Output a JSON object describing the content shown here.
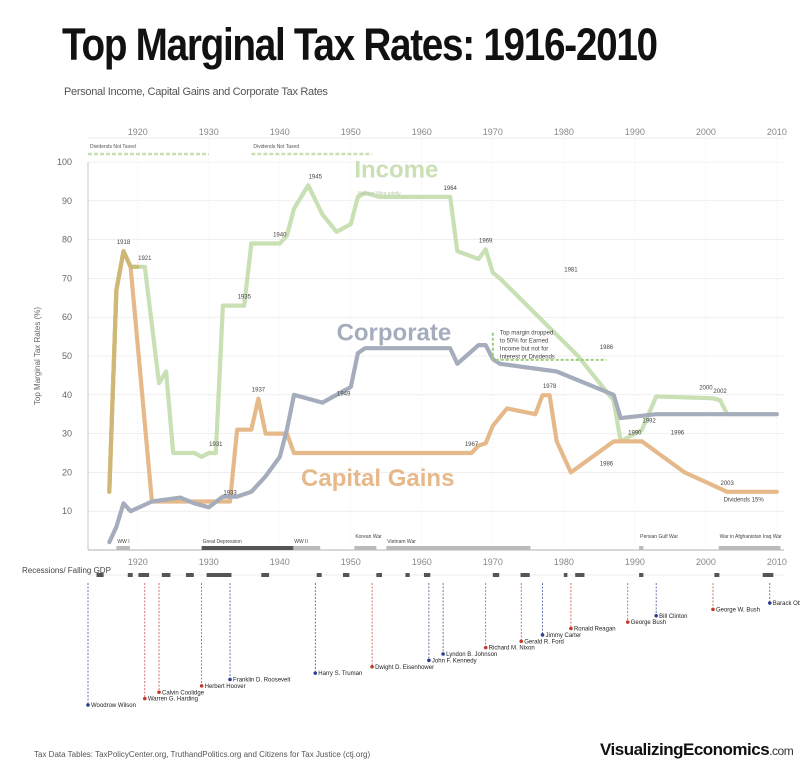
{
  "title": "Top Marginal Tax Rates: 1916-2010",
  "subtitle": "Personal Income, Capital Gains and Corporate Tax Rates",
  "footer": {
    "source": "Tax Data Tables: TaxPolicyCenter.org, TruthandPolitics.org and Citizens for Tax Justice (ctj.org)",
    "brand": "VisualizingEconomics",
    "brand_suffix": ".com"
  },
  "colors": {
    "income": "#c9dfb4",
    "corporate": "#a5adbd",
    "capital_gains": "#e6b98a",
    "republican": "#c0392b",
    "democrat": "#2e3d8f"
  },
  "chart_data": {
    "type": "line",
    "title": "Top Marginal Tax Rates: 1916-2010",
    "ylabel": "Top Marginal Tax Rates (%)",
    "xlabel": "",
    "xlim": [
      1913,
      2011
    ],
    "ylim": [
      0,
      100
    ],
    "x_ticks_top": [
      1920,
      1930,
      1940,
      1950,
      1960,
      1970,
      1980,
      1990,
      2000,
      2010
    ],
    "x_ticks_bottom": [
      1920,
      1930,
      1940,
      1950,
      1960,
      1970,
      1980,
      1990,
      2000,
      2010
    ],
    "y_ticks": [
      10,
      20,
      30,
      40,
      50,
      60,
      70,
      80,
      90,
      100
    ],
    "series": [
      {
        "name": "Income",
        "label": "Income",
        "sublabel": "Married filing jointly",
        "x": [
          1916,
          1917,
          1918,
          1919,
          1920,
          1921,
          1922,
          1923,
          1924,
          1925,
          1928,
          1929,
          1930,
          1931,
          1932,
          1934,
          1935,
          1936,
          1940,
          1941,
          1942,
          1944,
          1946,
          1948,
          1950,
          1951,
          1952,
          1954,
          1964,
          1965,
          1968,
          1969,
          1970,
          1971,
          1982,
          1987,
          1988,
          1991,
          1993,
          2001,
          2002,
          2003,
          2010
        ],
        "values": [
          15,
          67,
          77,
          73,
          73,
          73,
          58,
          43,
          46,
          25,
          25,
          24,
          25,
          25,
          63,
          63,
          63,
          79,
          79,
          81,
          88,
          94,
          86.5,
          82,
          84,
          91,
          92,
          91,
          91,
          77,
          75,
          77.5,
          71.5,
          70,
          50,
          38.5,
          28,
          31,
          39.6,
          39.1,
          38.6,
          35,
          35
        ],
        "annotations": [
          {
            "x": 1918,
            "y": 77,
            "text": "1918"
          },
          {
            "x": 1921,
            "y": 73,
            "text": "1921"
          },
          {
            "x": 1931,
            "y": 25,
            "text": "1931"
          },
          {
            "x": 1935,
            "y": 63,
            "text": "1935"
          },
          {
            "x": 1940,
            "y": 79,
            "text": "1940"
          },
          {
            "x": 1945,
            "y": 94,
            "text": "1945"
          },
          {
            "x": 1964,
            "y": 91,
            "text": "1964"
          },
          {
            "x": 1969,
            "y": 77.5,
            "text": "1969"
          },
          {
            "x": 1981,
            "y": 70,
            "text": "1981"
          },
          {
            "x": 1986,
            "y": 50,
            "text": "1986"
          },
          {
            "x": 1992,
            "y": 31,
            "text": "1992"
          },
          {
            "x": 2000,
            "y": 39.6,
            "text": "2000"
          },
          {
            "x": 2002,
            "y": 38.6,
            "text": "2002"
          }
        ]
      },
      {
        "name": "Corporate",
        "label": "Corporate",
        "x": [
          1916,
          1917,
          1918,
          1919,
          1922,
          1926,
          1928,
          1930,
          1932,
          1934,
          1936,
          1938,
          1940,
          1941,
          1942,
          1946,
          1950,
          1951,
          1952,
          1964,
          1965,
          1968,
          1969,
          1970,
          1971,
          1979,
          1987,
          1988,
          1993,
          2010
        ],
        "values": [
          2,
          6,
          12,
          10,
          12.5,
          13.5,
          12,
          11,
          13.75,
          13.75,
          15,
          19,
          24,
          31,
          40,
          38,
          42,
          50.75,
          52,
          52,
          48,
          52.8,
          52.8,
          49.2,
          48,
          46,
          40,
          34,
          35,
          35
        ],
        "annotations": [
          {
            "x": 1949,
            "y": 38,
            "text": "1949"
          }
        ]
      },
      {
        "name": "Capital Gains",
        "label": "Capital Gains",
        "x": [
          1916,
          1917,
          1918,
          1919,
          1922,
          1933,
          1934,
          1936,
          1937,
          1938,
          1941,
          1942,
          1967,
          1968,
          1969,
          1970,
          1972,
          1976,
          1977,
          1978,
          1979,
          1981,
          1987,
          1991,
          1997,
          2003,
          2010
        ],
        "values": [
          15,
          67,
          77,
          73,
          12.5,
          12.5,
          31,
          31,
          39,
          30,
          30,
          25,
          25,
          26.9,
          27.5,
          32,
          36.5,
          35,
          39.9,
          39.9,
          28,
          20,
          28,
          28,
          20,
          15,
          15
        ],
        "annotations": [
          {
            "x": 1933,
            "y": 12.5,
            "text": "1933"
          },
          {
            "x": 1937,
            "y": 39,
            "text": "1937"
          },
          {
            "x": 1967,
            "y": 25,
            "text": "1967"
          },
          {
            "x": 1978,
            "y": 39.9,
            "text": "1978"
          },
          {
            "x": 1986,
            "y": 20,
            "text": "1986"
          },
          {
            "x": 1990,
            "y": 28,
            "text": "1990"
          },
          {
            "x": 1996,
            "y": 28,
            "text": "1996"
          },
          {
            "x": 2003,
            "y": 15,
            "text": "2003"
          }
        ]
      }
    ],
    "notes": [
      {
        "x1": 1913,
        "x2": 1930,
        "text": "Dividends Not Taxed"
      },
      {
        "x1": 1936,
        "x2": 1953,
        "text": "Dividends Not Taxed"
      }
    ],
    "callout": {
      "x": 2003,
      "text": "Dividends 15%",
      "note_lines": [
        "Top margin dropped",
        "to 50% for Earned",
        "Income but not for",
        "Interest or Dividends"
      ]
    },
    "wars": [
      {
        "label": "WW I",
        "x1": 1917,
        "x2": 1918.9
      },
      {
        "label": "Great Depression",
        "x1": 1929,
        "x2": 1942
      },
      {
        "label": "WW II",
        "x1": 1941.9,
        "x2": 1945.7
      },
      {
        "label": "Korean War",
        "x1": 1950.5,
        "x2": 1953.6
      },
      {
        "label": "Vietnam War",
        "x1": 1955,
        "x2": 1975.3
      },
      {
        "label": "Persian Gulf War",
        "x1": 1990.6,
        "x2": 1991.2
      },
      {
        "label": "War in Afghanistan Iraq War",
        "x1": 2001.8,
        "x2": 2010.5
      }
    ],
    "recessions_label": "Recessions/ Falling GDP",
    "recessions": [
      [
        1914.2,
        1915.2
      ],
      [
        1918.6,
        1919.3
      ],
      [
        1920.1,
        1921.6
      ],
      [
        1923.4,
        1924.6
      ],
      [
        1926.8,
        1927.9
      ],
      [
        1929.7,
        1933.2
      ],
      [
        1937.4,
        1938.5
      ],
      [
        1945.2,
        1945.9
      ],
      [
        1948.9,
        1949.8
      ],
      [
        1953.6,
        1954.4
      ],
      [
        1957.7,
        1958.3
      ],
      [
        1960.3,
        1961.2
      ],
      [
        1970,
        1970.9
      ],
      [
        1973.9,
        1975.2
      ],
      [
        1980,
        1980.5
      ],
      [
        1981.6,
        1982.9
      ],
      [
        1990.6,
        1991.2
      ],
      [
        2001.2,
        2001.9
      ],
      [
        2008,
        2009.5
      ]
    ],
    "presidents": [
      {
        "name": "Woodrow Wilson",
        "year": 1913,
        "party": "D"
      },
      {
        "name": "Warren G. Harding",
        "year": 1921,
        "party": "R"
      },
      {
        "name": "Calvin Coolidge",
        "year": 1923,
        "party": "R"
      },
      {
        "name": "Herbert Hoover",
        "year": 1929,
        "party": "R"
      },
      {
        "name": "Franklin D. Roosevelt",
        "year": 1933,
        "party": "D"
      },
      {
        "name": "Harry S. Truman",
        "year": 1945,
        "party": "D"
      },
      {
        "name": "Dwight D. Eisenhower",
        "year": 1953,
        "party": "R"
      },
      {
        "name": "John F. Kennedy",
        "year": 1961,
        "party": "D"
      },
      {
        "name": "Lyndon B. Johnson",
        "year": 1963,
        "party": "D"
      },
      {
        "name": "Richard M. Nixon",
        "year": 1969,
        "party": "R"
      },
      {
        "name": "Gerald R. Ford",
        "year": 1974,
        "party": "R"
      },
      {
        "name": "Jimmy Carter",
        "year": 1977,
        "party": "D"
      },
      {
        "name": "Ronald Reagan",
        "year": 1981,
        "party": "R"
      },
      {
        "name": "George Bush",
        "year": 1989,
        "party": "R"
      },
      {
        "name": "Bill Clinton",
        "year": 1993,
        "party": "D"
      },
      {
        "name": "George W. Bush",
        "year": 2001,
        "party": "R"
      },
      {
        "name": "Barack Obama",
        "year": 2009,
        "party": "D"
      }
    ]
  }
}
